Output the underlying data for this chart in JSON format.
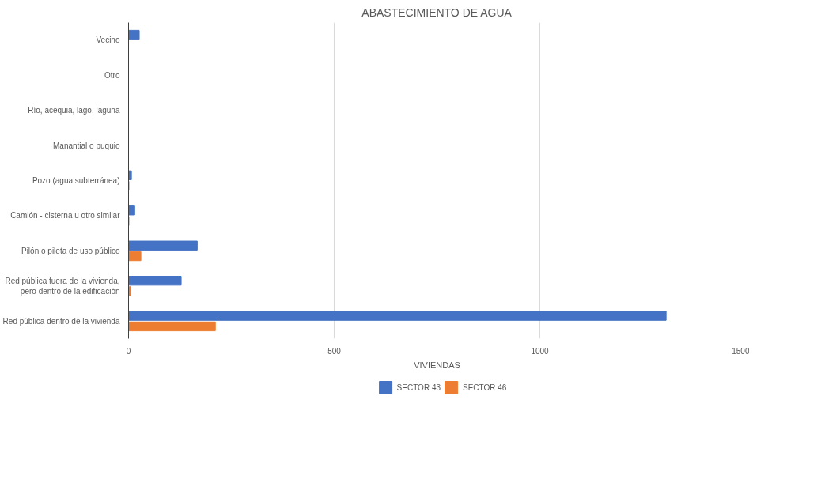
{
  "chart_data": {
    "type": "bar",
    "orientation": "horizontal",
    "title": "ABASTECIMIENTO DE AGUA",
    "xlabel": "VIVIENDAS",
    "categories": [
      "Vecino",
      "Otro",
      "Río, acequia, lago, laguna",
      "Manantial o puquio",
      "Pozo (agua subterránea)",
      "Camión - cisterna u otro similar",
      "Pilón o pileta de uso público",
      "Red pública fuera de la vivienda,\npero dentro de la edificación",
      "Red pública dentro de la vivienda"
    ],
    "series": [
      {
        "name": "SECTOR 43",
        "color": "#4472c4",
        "values": [
          26,
          0,
          0,
          0,
          7,
          15,
          167,
          128,
          1307
        ]
      },
      {
        "name": "SECTOR 46",
        "color": "#ed7d31",
        "values": [
          0,
          0,
          0,
          0,
          1,
          1,
          30,
          5,
          211
        ]
      }
    ],
    "xlim": [
      0,
      1500
    ],
    "xticks": [
      0,
      500,
      1000,
      1500
    ],
    "grid": "x",
    "legend": "bottom"
  }
}
